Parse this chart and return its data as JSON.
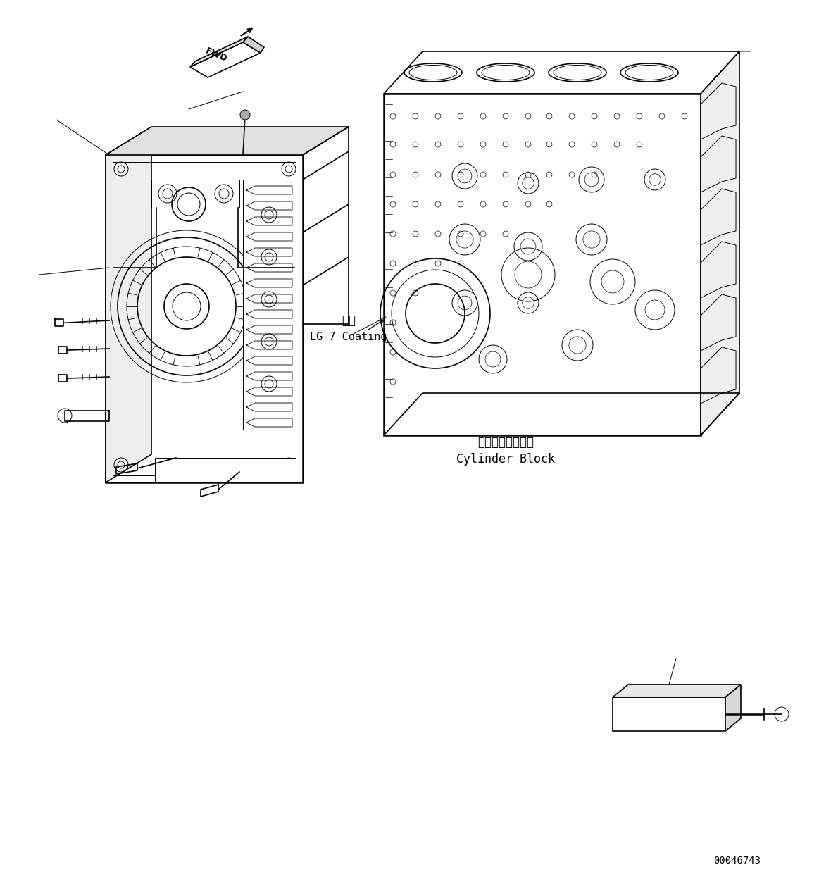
{
  "bg_color": "#ffffff",
  "line_color": "#000000",
  "fig_width": 11.63,
  "fig_height": 12.48,
  "dpi": 100,
  "part_number": "00046743",
  "annotation_jp": "塗布",
  "annotation_en": "LG-7 Coating",
  "label_jp": "シリンダブロック",
  "label_en": "Cylinder Block",
  "fwd_text": "FWD"
}
